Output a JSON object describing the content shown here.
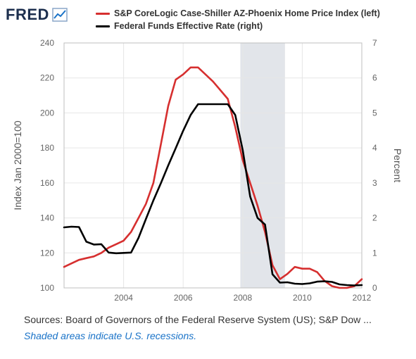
{
  "logo": {
    "text": "FRED"
  },
  "footer": {
    "sources": "Sources: Board of Governors of the Federal Reserve System (US); S&P Dow ...",
    "recessions": "Shaded areas indicate U.S. recessions."
  },
  "colors": {
    "series_left": "#d62f2f",
    "series_right": "#000000",
    "recession_fill": "#e2e5ea",
    "grid": "#e6e6e6",
    "plot_border": "#bfbfbf",
    "brand": "#1d2f4e"
  },
  "chart_data": {
    "type": "line",
    "grid": true,
    "legend_position": "top",
    "x_range": [
      2002.0,
      2012.0
    ],
    "x_ticks": [
      2004,
      2006,
      2008,
      2010,
      2012
    ],
    "y_left": {
      "label": "Index Jan 2000=100",
      "range": [
        100,
        240
      ],
      "ticks": [
        100,
        120,
        140,
        160,
        180,
        200,
        220,
        240
      ]
    },
    "y_right": {
      "label": "Percent",
      "range": [
        0,
        7
      ],
      "ticks": [
        0,
        1,
        2,
        3,
        4,
        5,
        6,
        7
      ]
    },
    "recessions": [
      {
        "start": 2007.92,
        "end": 2009.42
      }
    ],
    "series": [
      {
        "name": "S&P CoreLogic Case-Shiller AZ-Phoenix Home Price Index (left)",
        "axis": "left",
        "color": "#d62f2f",
        "points": [
          [
            2002.0,
            112
          ],
          [
            2002.25,
            114
          ],
          [
            2002.5,
            116
          ],
          [
            2002.75,
            117
          ],
          [
            2003.0,
            118
          ],
          [
            2003.25,
            120
          ],
          [
            2003.5,
            123
          ],
          [
            2003.75,
            125
          ],
          [
            2004.0,
            127
          ],
          [
            2004.25,
            132
          ],
          [
            2004.5,
            140
          ],
          [
            2004.75,
            148
          ],
          [
            2005.0,
            160
          ],
          [
            2005.25,
            182
          ],
          [
            2005.5,
            204
          ],
          [
            2005.75,
            219
          ],
          [
            2006.0,
            222
          ],
          [
            2006.25,
            226
          ],
          [
            2006.5,
            226
          ],
          [
            2006.75,
            222
          ],
          [
            2007.0,
            218
          ],
          [
            2007.25,
            213
          ],
          [
            2007.5,
            208
          ],
          [
            2007.75,
            192
          ],
          [
            2008.0,
            173
          ],
          [
            2008.25,
            160
          ],
          [
            2008.5,
            147
          ],
          [
            2008.75,
            132
          ],
          [
            2009.0,
            113
          ],
          [
            2009.25,
            105
          ],
          [
            2009.5,
            108
          ],
          [
            2009.75,
            112
          ],
          [
            2010.0,
            111
          ],
          [
            2010.25,
            111
          ],
          [
            2010.5,
            109
          ],
          [
            2010.75,
            104
          ],
          [
            2011.0,
            101
          ],
          [
            2011.25,
            100
          ],
          [
            2011.5,
            100
          ],
          [
            2011.75,
            101
          ],
          [
            2012.0,
            105
          ]
        ]
      },
      {
        "name": "Federal Funds Effective Rate (right)",
        "axis": "right",
        "color": "#000000",
        "points": [
          [
            2002.0,
            1.73
          ],
          [
            2002.25,
            1.75
          ],
          [
            2002.5,
            1.74
          ],
          [
            2002.75,
            1.32
          ],
          [
            2003.0,
            1.24
          ],
          [
            2003.25,
            1.25
          ],
          [
            2003.5,
            1.01
          ],
          [
            2003.75,
            0.99
          ],
          [
            2004.0,
            1.0
          ],
          [
            2004.25,
            1.01
          ],
          [
            2004.5,
            1.43
          ],
          [
            2004.75,
            1.97
          ],
          [
            2005.0,
            2.5
          ],
          [
            2005.25,
            2.99
          ],
          [
            2005.5,
            3.5
          ],
          [
            2005.75,
            3.99
          ],
          [
            2006.0,
            4.49
          ],
          [
            2006.25,
            4.94
          ],
          [
            2006.5,
            5.25
          ],
          [
            2006.75,
            5.25
          ],
          [
            2007.0,
            5.25
          ],
          [
            2007.25,
            5.25
          ],
          [
            2007.5,
            5.25
          ],
          [
            2007.75,
            4.94
          ],
          [
            2008.0,
            3.94
          ],
          [
            2008.25,
            2.61
          ],
          [
            2008.5,
            2.0
          ],
          [
            2008.75,
            1.81
          ],
          [
            2009.0,
            0.39
          ],
          [
            2009.25,
            0.15
          ],
          [
            2009.5,
            0.16
          ],
          [
            2009.75,
            0.12
          ],
          [
            2010.0,
            0.11
          ],
          [
            2010.25,
            0.13
          ],
          [
            2010.5,
            0.18
          ],
          [
            2010.75,
            0.19
          ],
          [
            2011.0,
            0.17
          ],
          [
            2011.25,
            0.1
          ],
          [
            2011.5,
            0.08
          ],
          [
            2011.75,
            0.07
          ],
          [
            2012.0,
            0.08
          ]
        ]
      }
    ]
  }
}
